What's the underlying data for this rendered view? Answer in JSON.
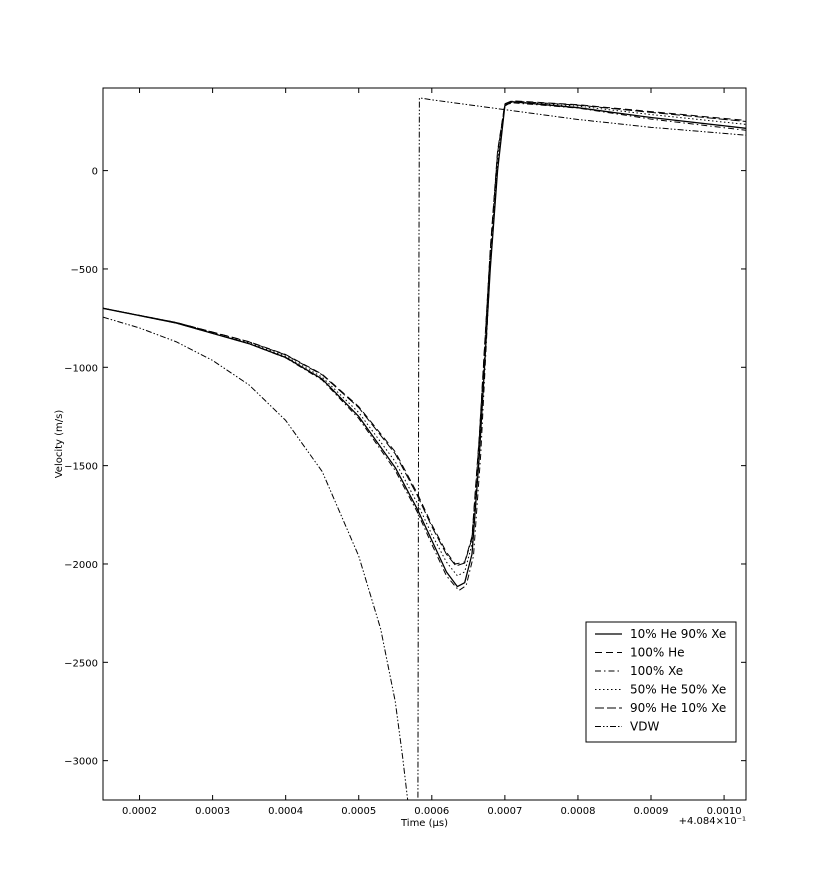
{
  "chart_data": {
    "type": "line",
    "title": "",
    "xlabel": "Time (µs)",
    "ylabel": "Velocity (m/s)",
    "x_offset_label": "+4.084×10⁻¹",
    "xlim": [
      0.00015,
      0.00103
    ],
    "ylim": [
      -3200,
      420
    ],
    "grid": false,
    "legend_position": "lower-right",
    "x_ticks": [
      {
        "value": 0.0002,
        "label": "0.0002"
      },
      {
        "value": 0.0003,
        "label": "0.0003"
      },
      {
        "value": 0.0004,
        "label": "0.0004"
      },
      {
        "value": 0.0005,
        "label": "0.0005"
      },
      {
        "value": 0.0006,
        "label": "0.0006"
      },
      {
        "value": 0.0007,
        "label": "0.0007"
      },
      {
        "value": 0.0008,
        "label": "0.0008"
      },
      {
        "value": 0.0009,
        "label": "0.0009"
      },
      {
        "value": 0.001,
        "label": "0.0010"
      }
    ],
    "y_ticks": [
      {
        "value": 0,
        "label": "0"
      },
      {
        "value": -500,
        "label": "−500"
      },
      {
        "value": -1000,
        "label": "−1000"
      },
      {
        "value": -1500,
        "label": "−1500"
      },
      {
        "value": -2000,
        "label": "−2000"
      },
      {
        "value": -2500,
        "label": "−2500"
      },
      {
        "value": -3000,
        "label": "−3000"
      }
    ],
    "series": [
      {
        "name": "10% He 90% Xe",
        "dash": "",
        "width": 1.3,
        "points": [
          [
            0.00015,
            -700
          ],
          [
            0.00025,
            -775
          ],
          [
            0.00035,
            -880
          ],
          [
            0.0004,
            -950
          ],
          [
            0.00045,
            -1060
          ],
          [
            0.0005,
            -1250
          ],
          [
            0.00055,
            -1510
          ],
          [
            0.00058,
            -1720
          ],
          [
            0.0006,
            -1880
          ],
          [
            0.00062,
            -2040
          ],
          [
            0.000635,
            -2115
          ],
          [
            0.000645,
            -2095
          ],
          [
            0.000655,
            -1950
          ],
          [
            0.000665,
            -1450
          ],
          [
            0.00068,
            -500
          ],
          [
            0.00069,
            0
          ],
          [
            0.0007,
            330
          ],
          [
            0.00071,
            350
          ],
          [
            0.0008,
            320
          ],
          [
            0.0009,
            270
          ],
          [
            0.00103,
            215
          ]
        ]
      },
      {
        "name": "100% He",
        "dash": "7,4",
        "width": 1.0,
        "points": [
          [
            0.00015,
            -700
          ],
          [
            0.00025,
            -772
          ],
          [
            0.00035,
            -870
          ],
          [
            0.0004,
            -935
          ],
          [
            0.00045,
            -1035
          ],
          [
            0.0005,
            -1200
          ],
          [
            0.00055,
            -1430
          ],
          [
            0.00058,
            -1640
          ],
          [
            0.0006,
            -1800
          ],
          [
            0.00062,
            -1940
          ],
          [
            0.000632,
            -2000
          ],
          [
            0.000645,
            -1990
          ],
          [
            0.000655,
            -1860
          ],
          [
            0.000665,
            -1350
          ],
          [
            0.00068,
            -400
          ],
          [
            0.00069,
            100
          ],
          [
            0.0007,
            340
          ],
          [
            0.00071,
            355
          ],
          [
            0.0008,
            335
          ],
          [
            0.0009,
            300
          ],
          [
            0.00103,
            255
          ]
        ]
      },
      {
        "name": "100% Xe",
        "dash": "6,3,1.5,3",
        "width": 1.0,
        "points": [
          [
            0.00015,
            -700
          ],
          [
            0.00025,
            -775
          ],
          [
            0.00035,
            -880
          ],
          [
            0.0004,
            -952
          ],
          [
            0.00045,
            -1065
          ],
          [
            0.0005,
            -1260
          ],
          [
            0.00055,
            -1525
          ],
          [
            0.00058,
            -1735
          ],
          [
            0.0006,
            -1900
          ],
          [
            0.00062,
            -2060
          ],
          [
            0.000637,
            -2135
          ],
          [
            0.000647,
            -2110
          ],
          [
            0.000657,
            -1960
          ],
          [
            0.000667,
            -1440
          ],
          [
            0.00068,
            -480
          ],
          [
            0.00069,
            20
          ],
          [
            0.0007,
            330
          ],
          [
            0.00071,
            345
          ],
          [
            0.0008,
            318
          ],
          [
            0.0009,
            262
          ],
          [
            0.00103,
            205
          ]
        ]
      },
      {
        "name": "50% He 50% Xe",
        "dash": "1.5,2.5",
        "width": 1.0,
        "points": [
          [
            0.00015,
            -700
          ],
          [
            0.00025,
            -773
          ],
          [
            0.00035,
            -876
          ],
          [
            0.0004,
            -944
          ],
          [
            0.00045,
            -1050
          ],
          [
            0.0005,
            -1230
          ],
          [
            0.00055,
            -1480
          ],
          [
            0.00058,
            -1690
          ],
          [
            0.0006,
            -1850
          ],
          [
            0.00062,
            -1990
          ],
          [
            0.000635,
            -2060
          ],
          [
            0.000645,
            -2040
          ],
          [
            0.000655,
            -1900
          ],
          [
            0.000665,
            -1400
          ],
          [
            0.00068,
            -450
          ],
          [
            0.00069,
            50
          ],
          [
            0.0007,
            335
          ],
          [
            0.00071,
            350
          ],
          [
            0.0008,
            328
          ],
          [
            0.0009,
            285
          ],
          [
            0.00103,
            235
          ]
        ]
      },
      {
        "name": "90% He 10% Xe",
        "dash": "9,3",
        "width": 1.0,
        "points": [
          [
            0.00015,
            -700
          ],
          [
            0.00025,
            -772
          ],
          [
            0.00035,
            -871
          ],
          [
            0.0004,
            -937
          ],
          [
            0.00045,
            -1038
          ],
          [
            0.0005,
            -1205
          ],
          [
            0.00055,
            -1440
          ],
          [
            0.00058,
            -1650
          ],
          [
            0.0006,
            -1810
          ],
          [
            0.00062,
            -1950
          ],
          [
            0.000633,
            -2010
          ],
          [
            0.000645,
            -1995
          ],
          [
            0.000655,
            -1870
          ],
          [
            0.000665,
            -1360
          ],
          [
            0.00068,
            -410
          ],
          [
            0.00069,
            90
          ],
          [
            0.0007,
            338
          ],
          [
            0.00071,
            353
          ],
          [
            0.0008,
            333
          ],
          [
            0.0009,
            296
          ],
          [
            0.00103,
            250
          ]
        ]
      },
      {
        "name": "VDW",
        "dash": "6,2,1.5,2,1.5,2",
        "width": 1.0,
        "points": [
          [
            0.00015,
            -745
          ],
          [
            0.0002,
            -800
          ],
          [
            0.00025,
            -870
          ],
          [
            0.0003,
            -965
          ],
          [
            0.00035,
            -1090
          ],
          [
            0.0004,
            -1270
          ],
          [
            0.00045,
            -1530
          ],
          [
            0.0005,
            -1960
          ],
          [
            0.00053,
            -2330
          ],
          [
            0.00055,
            -2700
          ],
          [
            0.00056,
            -2980
          ],
          [
            0.000567,
            -3200
          ],
          [
            0.000568,
            -3200
          ],
          [
            0.00057,
            -3200
          ],
          [
            0.000575,
            -3200
          ],
          [
            0.000578,
            -3200
          ],
          [
            0.00058,
            -3200
          ],
          [
            0.000581,
            -3200
          ],
          [
            0.000582,
            -1000
          ],
          [
            0.000583,
            370
          ],
          [
            0.0006,
            360
          ],
          [
            0.0007,
            310
          ],
          [
            0.0008,
            260
          ],
          [
            0.0009,
            220
          ],
          [
            0.00103,
            180
          ]
        ]
      }
    ]
  }
}
